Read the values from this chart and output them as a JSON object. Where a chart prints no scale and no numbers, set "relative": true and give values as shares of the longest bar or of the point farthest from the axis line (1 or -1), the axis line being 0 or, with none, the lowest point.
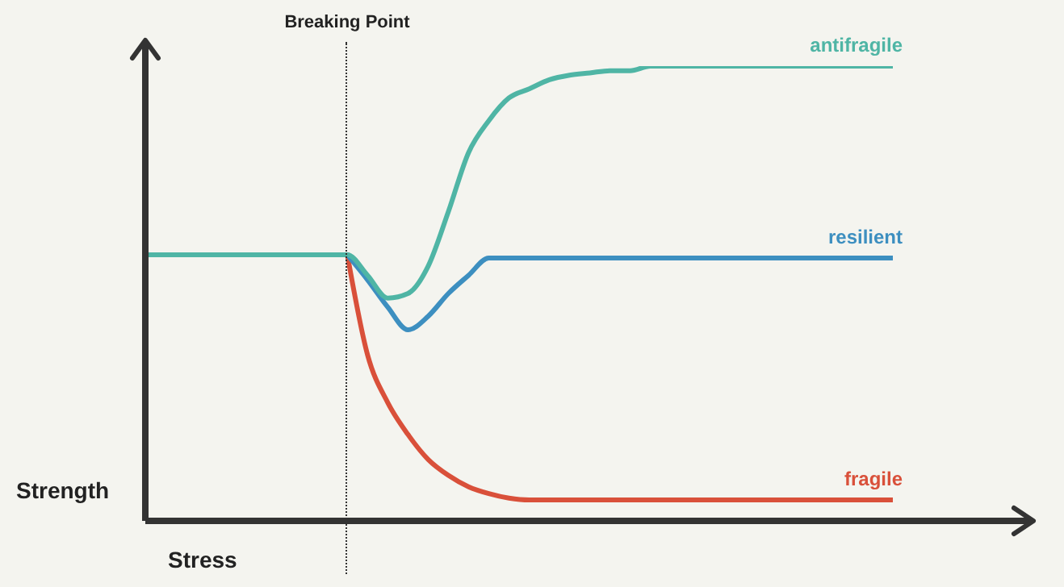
{
  "chart_data": {
    "type": "line",
    "relative": true,
    "xlabel": "Stress",
    "ylabel": "Strength",
    "categories": [
      null,
      null,
      null,
      null,
      null,
      null,
      null,
      null,
      null,
      null,
      null,
      null,
      null,
      null,
      null,
      null,
      null,
      null,
      null,
      null,
      null,
      null,
      null,
      null,
      null,
      null,
      null,
      null,
      null,
      null,
      null,
      null,
      null,
      null,
      null,
      null,
      null,
      null
    ],
    "series": [
      {
        "name": "fragile",
        "color": "#d9503a",
        "values": [
          null,
          null,
          null,
          null,
          null,
          null,
          null,
          null,
          null,
          null,
          0.585,
          0.365,
          0.26,
          0.19,
          0.135,
          0.1,
          0.075,
          0.06,
          0.05,
          0.046,
          0.046,
          0.046,
          0.046,
          0.046,
          0.046,
          0.046,
          0.046,
          0.046,
          0.046,
          0.046,
          0.046,
          0.046,
          0.046,
          0.046,
          0.046,
          0.046,
          0.046,
          0.046
        ]
      },
      {
        "name": "resilient",
        "color": "#3d8fc0",
        "values": [
          null,
          null,
          null,
          null,
          null,
          null,
          null,
          null,
          null,
          null,
          0.585,
          0.53,
          0.47,
          0.42,
          0.45,
          0.5,
          0.54,
          0.578,
          0.578,
          0.578,
          0.578,
          0.578,
          0.578,
          0.578,
          0.578,
          0.578,
          0.578,
          0.578,
          0.578,
          0.578,
          0.578,
          0.578,
          0.578,
          0.578,
          0.578,
          0.578,
          0.578,
          0.578
        ]
      },
      {
        "name": "antifragile",
        "color": "#4fb5a5",
        "values": [
          0.585,
          0.585,
          0.585,
          0.585,
          0.585,
          0.585,
          0.585,
          0.585,
          0.585,
          0.585,
          0.585,
          0.54,
          0.49,
          0.5,
          0.56,
          0.68,
          0.81,
          0.88,
          0.93,
          0.95,
          0.97,
          0.98,
          0.985,
          0.99,
          0.99,
          1,
          1,
          1,
          1,
          1,
          1,
          1,
          1,
          1,
          1,
          1,
          1,
          1
        ]
      }
    ],
    "annotations": [
      "Breaking Point"
    ]
  }
}
